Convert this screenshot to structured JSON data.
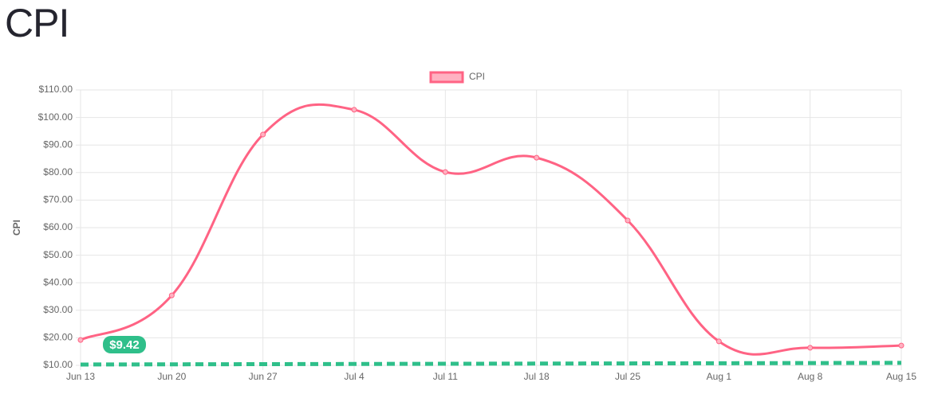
{
  "chart_data": {
    "type": "line",
    "title": "CPI",
    "y_label": "CPI",
    "categories": [
      "Jun 13",
      "Jun 20",
      "Jun 27",
      "Jul 4",
      "Jul 11",
      "Jul 18",
      "Jul 25",
      "Aug 1",
      "Aug 8",
      "Aug 15"
    ],
    "series": [
      {
        "name": "CPI",
        "color": "#ff6384",
        "values": [
          19.2,
          35.4,
          93.8,
          102.8,
          80.2,
          85.4,
          62.6,
          18.7,
          16.4,
          17.2
        ]
      }
    ],
    "ylim": [
      10,
      110
    ],
    "yticks": [
      {
        "value": 10,
        "label": "$10.00"
      },
      {
        "value": 20,
        "label": "$20.00"
      },
      {
        "value": 30,
        "label": "$30.00"
      },
      {
        "value": 40,
        "label": "$40.00"
      },
      {
        "value": 50,
        "label": "$50.00"
      },
      {
        "value": 60,
        "label": "$60.00"
      },
      {
        "value": 70,
        "label": "$70.00"
      },
      {
        "value": 80,
        "label": "$80.00"
      },
      {
        "value": 90,
        "label": "$90.00"
      },
      {
        "value": 100,
        "label": "$100.00"
      },
      {
        "value": 110,
        "label": "$110.00"
      }
    ],
    "grid": true,
    "legend": "top",
    "annotation": {
      "text": "$9.42",
      "color": "#2fbf8a",
      "line": [
        10.3,
        10.9
      ]
    }
  }
}
